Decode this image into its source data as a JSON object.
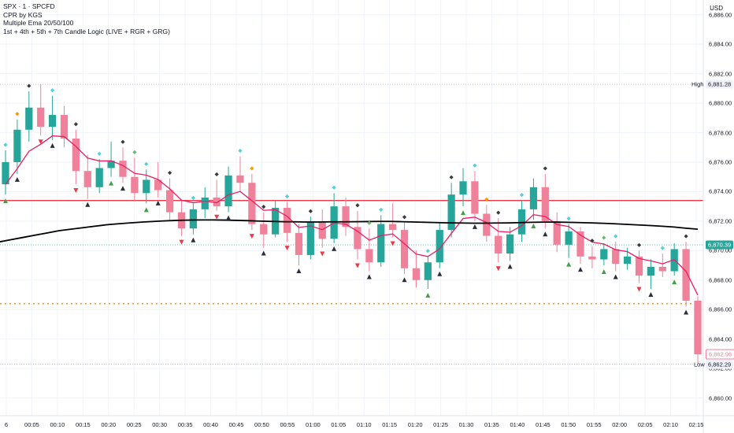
{
  "legend": {
    "symbol": "SPX · 1 · SPCFD",
    "indicators": [
      "CPR by KGS",
      "Multiple Ema 20/50/100",
      "1st + 4th + 5th + 7th Candle Logic (LIVE + RGR + GRG)"
    ]
  },
  "currency": "USD",
  "price_tags": {
    "high_label": "High",
    "high_value": "6,881.28",
    "low_label": "Low",
    "low_value": "6,862.29",
    "current_value": "6,870.39",
    "last_value": "6,862.96"
  },
  "colors": {
    "up": "#26a69a",
    "down": "#f0819a",
    "ema_fast": "#e91e63",
    "ema_slow": "#000000",
    "cpr_line": "#f23645",
    "pivot_dots": "#ff9800",
    "grid": "#f0f3fa",
    "marker_diamond_cyan": "#4dd0e1",
    "marker_diamond_orange": "#ff9800",
    "marker_diamond_dark": "#3a3a3a",
    "marker_diamond_green": "#66bb6a",
    "marker_triangle_up": "#43a047",
    "marker_triangle_down": "#f23645"
  },
  "chart_data": {
    "type": "candlestick",
    "symbol": "SPX",
    "interval": "1",
    "x_tick_labels": [
      "6",
      "00:05",
      "00:10",
      "00:15",
      "00:20",
      "00:25",
      "00:30",
      "00:35",
      "00:40",
      "00:45",
      "00:50",
      "00:55",
      "01:00",
      "01:05",
      "01:10",
      "01:15",
      "01:20",
      "01:25",
      "01:30",
      "01:35",
      "01:40",
      "01:45",
      "01:50",
      "01:55",
      "02:00",
      "02:05",
      "02:10",
      "02:15"
    ],
    "y_tick_labels": [
      "6,886.00",
      "6,884.00",
      "6,882.00",
      "6,880.00",
      "6,878.00",
      "6,876.00",
      "6,874.00",
      "6,872.00",
      "6,870.00",
      "6,868.00",
      "6,866.00",
      "6,864.00",
      "6,862.00",
      "6,860.00"
    ],
    "y_ticks": [
      6886,
      6884,
      6882,
      6880,
      6878,
      6876,
      6874,
      6872,
      6870,
      6868,
      6866,
      6864,
      6862,
      6860
    ],
    "ylim": [
      6858.8,
      6887.0
    ],
    "levels": {
      "cpr_line": 6873.4,
      "pivot_dotted": 6866.4,
      "high": 6881.28,
      "low": 6862.29,
      "current": 6870.39
    },
    "ema_slow_values": [
      6870.6,
      6870.75,
      6870.9,
      6871.05,
      6871.2,
      6871.35,
      6871.45,
      6871.55,
      6871.65,
      6871.75,
      6871.82,
      6871.88,
      6871.93,
      6871.98,
      6872.02,
      6872.05,
      6872.07,
      6872.08,
      6872.08,
      6872.07,
      6872.05,
      6872.03,
      6872.0,
      6871.98,
      6871.96,
      6871.95,
      6871.94,
      6871.94,
      6871.95,
      6871.95,
      6871.96,
      6871.97,
      6871.98,
      6871.98,
      6871.96,
      6871.94,
      6871.92,
      6871.9,
      6871.88,
      6871.87,
      6871.86,
      6871.86,
      6871.87,
      6871.88,
      6871.9,
      6871.92,
      6871.93,
      6871.93,
      6871.92,
      6871.9,
      6871.88,
      6871.85,
      6871.82,
      6871.78,
      6871.74,
      6871.7,
      6871.65,
      6871.6,
      6871.52,
      6871.45
    ],
    "candles": [
      {
        "o": 6874.5,
        "h": 6876.8,
        "l": 6873.8,
        "c": 6876.0
      },
      {
        "o": 6876.0,
        "h": 6878.9,
        "l": 6875.2,
        "c": 6878.2
      },
      {
        "o": 6878.2,
        "h": 6880.8,
        "l": 6877.4,
        "c": 6879.7
      },
      {
        "o": 6879.7,
        "h": 6881.28,
        "l": 6877.8,
        "c": 6878.4
      },
      {
        "o": 6878.4,
        "h": 6880.5,
        "l": 6877.5,
        "c": 6879.2
      },
      {
        "o": 6879.2,
        "h": 6879.8,
        "l": 6877.0,
        "c": 6877.6
      },
      {
        "o": 6877.6,
        "h": 6878.2,
        "l": 6874.5,
        "c": 6875.4
      },
      {
        "o": 6875.4,
        "h": 6876.5,
        "l": 6873.5,
        "c": 6874.3
      },
      {
        "o": 6874.3,
        "h": 6876.2,
        "l": 6873.9,
        "c": 6875.6
      },
      {
        "o": 6875.6,
        "h": 6877.4,
        "l": 6875.0,
        "c": 6876.1
      },
      {
        "o": 6876.1,
        "h": 6877.0,
        "l": 6874.6,
        "c": 6875.0
      },
      {
        "o": 6875.0,
        "h": 6876.3,
        "l": 6873.4,
        "c": 6873.9
      },
      {
        "o": 6873.9,
        "h": 6875.5,
        "l": 6873.2,
        "c": 6874.8
      },
      {
        "o": 6874.8,
        "h": 6876.0,
        "l": 6873.6,
        "c": 6874.1
      },
      {
        "o": 6874.1,
        "h": 6874.9,
        "l": 6872.0,
        "c": 6872.6
      },
      {
        "o": 6872.6,
        "h": 6873.4,
        "l": 6871.0,
        "c": 6871.5
      },
      {
        "o": 6871.5,
        "h": 6873.2,
        "l": 6871.1,
        "c": 6872.8
      },
      {
        "o": 6872.8,
        "h": 6874.3,
        "l": 6872.2,
        "c": 6873.6
      },
      {
        "o": 6873.6,
        "h": 6874.8,
        "l": 6872.7,
        "c": 6873.0
      },
      {
        "o": 6873.0,
        "h": 6875.7,
        "l": 6872.6,
        "c": 6875.1
      },
      {
        "o": 6875.1,
        "h": 6876.4,
        "l": 6874.0,
        "c": 6874.6
      },
      {
        "o": 6874.6,
        "h": 6875.2,
        "l": 6871.4,
        "c": 6871.8
      },
      {
        "o": 6871.8,
        "h": 6872.6,
        "l": 6870.2,
        "c": 6871.1
      },
      {
        "o": 6871.1,
        "h": 6873.4,
        "l": 6870.9,
        "c": 6872.9
      },
      {
        "o": 6872.9,
        "h": 6873.3,
        "l": 6870.6,
        "c": 6871.2
      },
      {
        "o": 6871.2,
        "h": 6871.8,
        "l": 6869.0,
        "c": 6869.7
      },
      {
        "o": 6869.7,
        "h": 6872.3,
        "l": 6869.4,
        "c": 6871.9
      },
      {
        "o": 6871.9,
        "h": 6872.8,
        "l": 6870.2,
        "c": 6870.8
      },
      {
        "o": 6870.8,
        "h": 6873.9,
        "l": 6870.5,
        "c": 6873.0
      },
      {
        "o": 6873.0,
        "h": 6873.6,
        "l": 6871.0,
        "c": 6871.6
      },
      {
        "o": 6871.6,
        "h": 6872.7,
        "l": 6869.4,
        "c": 6870.1
      },
      {
        "o": 6870.1,
        "h": 6871.5,
        "l": 6868.6,
        "c": 6869.2
      },
      {
        "o": 6869.2,
        "h": 6872.4,
        "l": 6868.9,
        "c": 6871.8
      },
      {
        "o": 6871.8,
        "h": 6873.2,
        "l": 6870.9,
        "c": 6871.4
      },
      {
        "o": 6871.4,
        "h": 6871.9,
        "l": 6868.4,
        "c": 6868.8
      },
      {
        "o": 6868.8,
        "h": 6870.0,
        "l": 6867.5,
        "c": 6868.0
      },
      {
        "o": 6868.0,
        "h": 6869.6,
        "l": 6867.4,
        "c": 6869.2
      },
      {
        "o": 6869.2,
        "h": 6871.9,
        "l": 6868.8,
        "c": 6871.4
      },
      {
        "o": 6871.4,
        "h": 6874.6,
        "l": 6870.9,
        "c": 6873.8
      },
      {
        "o": 6873.8,
        "h": 6875.6,
        "l": 6873.0,
        "c": 6874.7
      },
      {
        "o": 6874.7,
        "h": 6875.4,
        "l": 6872.0,
        "c": 6872.5
      },
      {
        "o": 6872.5,
        "h": 6873.1,
        "l": 6870.6,
        "c": 6871.0
      },
      {
        "o": 6871.0,
        "h": 6872.2,
        "l": 6869.2,
        "c": 6869.8
      },
      {
        "o": 6869.8,
        "h": 6871.6,
        "l": 6869.3,
        "c": 6871.1
      },
      {
        "o": 6871.1,
        "h": 6873.4,
        "l": 6870.6,
        "c": 6872.8
      },
      {
        "o": 6872.8,
        "h": 6874.9,
        "l": 6872.1,
        "c": 6874.3
      },
      {
        "o": 6874.3,
        "h": 6875.2,
        "l": 6871.5,
        "c": 6872.0
      },
      {
        "o": 6872.0,
        "h": 6872.6,
        "l": 6869.9,
        "c": 6870.4
      },
      {
        "o": 6870.4,
        "h": 6871.8,
        "l": 6869.5,
        "c": 6871.3
      },
      {
        "o": 6871.3,
        "h": 6871.6,
        "l": 6869.1,
        "c": 6869.6
      },
      {
        "o": 6869.6,
        "h": 6870.3,
        "l": 6868.8,
        "c": 6869.4
      },
      {
        "o": 6869.4,
        "h": 6870.5,
        "l": 6869.0,
        "c": 6870.1
      },
      {
        "o": 6870.1,
        "h": 6870.6,
        "l": 6868.6,
        "c": 6869.1
      },
      {
        "o": 6869.1,
        "h": 6870.2,
        "l": 6868.7,
        "c": 6869.6
      },
      {
        "o": 6869.6,
        "h": 6870.0,
        "l": 6867.8,
        "c": 6868.3
      },
      {
        "o": 6868.3,
        "h": 6869.4,
        "l": 6867.4,
        "c": 6868.9
      },
      {
        "o": 6868.9,
        "h": 6869.8,
        "l": 6868.2,
        "c": 6868.6
      },
      {
        "o": 6868.6,
        "h": 6870.5,
        "l": 6868.3,
        "c": 6870.1
      },
      {
        "o": 6870.1,
        "h": 6870.6,
        "l": 6866.2,
        "c": 6866.6
      },
      {
        "o": 6866.6,
        "h": 6866.9,
        "l": 6862.29,
        "c": 6862.96
      }
    ]
  }
}
